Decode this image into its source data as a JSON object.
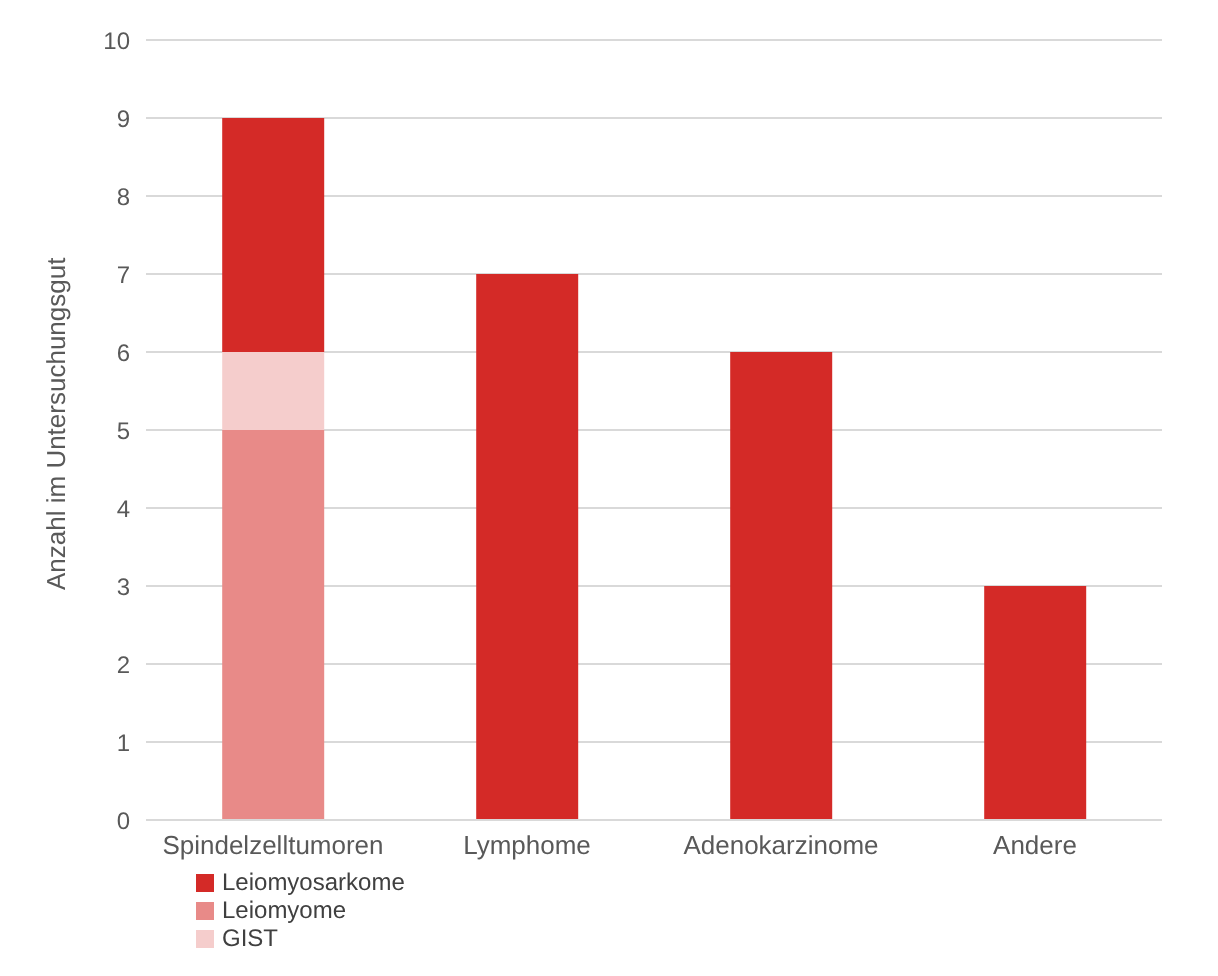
{
  "chart_data": {
    "type": "bar",
    "stacked": true,
    "ylabel": "Anzahl im Untersuchungsgut",
    "categories": [
      "Spindelzelltumoren",
      "Lymphome",
      "Adenokarzinome",
      "Andere"
    ],
    "series": [
      {
        "name": "Leiomyome",
        "color": "#e88a88",
        "values": [
          5,
          null,
          null,
          null
        ]
      },
      {
        "name": "GIST",
        "color": "#f5cdcc",
        "values": [
          1,
          null,
          null,
          null
        ]
      },
      {
        "name": "Leiomyosarkome",
        "color": "#d42a27",
        "values": [
          3,
          7,
          6,
          3
        ]
      }
    ],
    "ylim": [
      0,
      10
    ],
    "yticks": [
      0,
      1,
      2,
      3,
      4,
      5,
      6,
      7,
      8,
      9,
      10
    ],
    "grid": "y",
    "legend": "bottom left"
  }
}
